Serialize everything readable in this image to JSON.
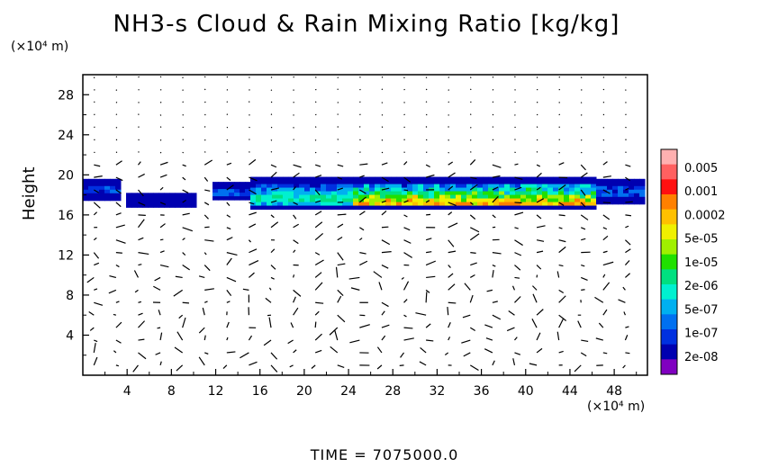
{
  "chart_data": {
    "type": "heatmap",
    "title": "NH3-s Cloud & Rain Mixing Ratio [kg/kg]",
    "ylabel": "Height",
    "y_unit": "(×10⁴ m)",
    "x_unit": "(×10⁴ m)",
    "footer": "TIME  =  7075000.0",
    "xlim": [
      0,
      51
    ],
    "ylim": [
      0,
      30
    ],
    "x_ticks": [
      4,
      8,
      12,
      16,
      20,
      24,
      28,
      32,
      36,
      40,
      44,
      48
    ],
    "y_ticks": [
      4,
      8,
      12,
      16,
      20,
      24,
      28
    ],
    "colorbar": {
      "labels": [
        "0.005",
        "0.001",
        "0.0002",
        "5e-05",
        "1e-05",
        "2e-06",
        "5e-07",
        "1e-07",
        "2e-08"
      ],
      "colors": [
        "#ffb0b0",
        "#ff6060",
        "#ff1010",
        "#ff8000",
        "#ffc000",
        "#f0f000",
        "#a0f000",
        "#20e000",
        "#00e080",
        "#00f0d0",
        "#00b0f0",
        "#0070f0",
        "#0030e0",
        "#0000b0",
        "#8000c0"
      ]
    },
    "cloud_layer": {
      "height_range": [
        16,
        20
      ],
      "x_range": [
        0,
        51
      ],
      "peak_region_x": [
        24,
        46
      ],
      "peak_height": 17
    }
  }
}
